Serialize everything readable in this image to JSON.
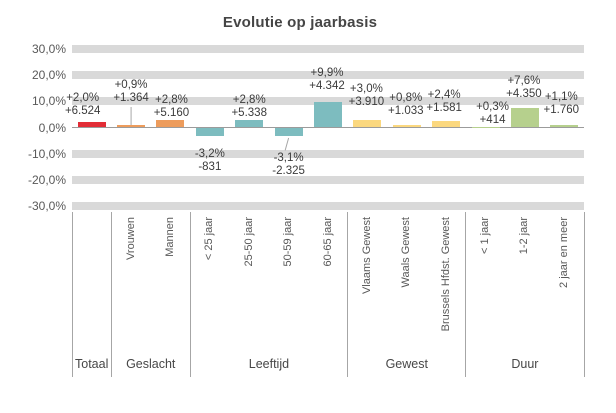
{
  "title": "Evolutie op jaarbasis",
  "colors": {
    "gridband": "#d9d9d9",
    "axis_line": "#9b9b9b",
    "separator": "#a6a6a6",
    "title_text": "#454545",
    "axis_text": "#595959",
    "label_text": "#3b3b3b"
  },
  "chart_data": {
    "type": "bar",
    "title": "Evolutie op jaarbasis",
    "xlabel": "",
    "ylabel": "",
    "ylim": [
      -30,
      30
    ],
    "grid": "horizontal-bands",
    "legend": "none",
    "yticks": [
      {
        "label": "30,0%",
        "value": 30
      },
      {
        "label": "20,0%",
        "value": 20
      },
      {
        "label": "10,0%",
        "value": 10
      },
      {
        "label": "0,0%",
        "value": 0
      },
      {
        "label": "-10,0%",
        "value": -10
      },
      {
        "label": "-20,0%",
        "value": -20
      },
      {
        "label": "-30,0%",
        "value": -30
      }
    ],
    "groups": [
      {
        "label": "Totaal",
        "color": "#e22d36",
        "bars": [
          {
            "category": "",
            "pct": 2.0,
            "pct_label": "+2,0%",
            "abs_label": "+6.524"
          }
        ]
      },
      {
        "label": "Geslacht",
        "color": "#ed9c5c",
        "bars": [
          {
            "category": "Vrouwen",
            "pct": 0.9,
            "pct_label": "+0,9%",
            "abs_label": "+1.364"
          },
          {
            "category": "Mannen",
            "pct": 2.8,
            "pct_label": "+2,8%",
            "abs_label": "+5.160"
          }
        ]
      },
      {
        "label": "Leeftijd",
        "color": "#7dbcbf",
        "bars": [
          {
            "category": "< 25 jaar",
            "pct": -3.2,
            "pct_label": "-3,2%",
            "abs_label": "-831"
          },
          {
            "category": "25-50 jaar",
            "pct": 2.8,
            "pct_label": "+2,8%",
            "abs_label": "+5.338"
          },
          {
            "category": "50-59 jaar",
            "pct": -3.1,
            "pct_label": "-3,1%",
            "abs_label": "-2.325"
          },
          {
            "category": "60-65 jaar",
            "pct": 9.9,
            "pct_label": "+9,9%",
            "abs_label": "+4.342"
          }
        ]
      },
      {
        "label": "Gewest",
        "color": "#fbd87f",
        "bars": [
          {
            "category": "Vlaams Gewest",
            "pct": 3.0,
            "pct_label": "+3,0%",
            "abs_label": "+3.910"
          },
          {
            "category": "Waals Gewest",
            "pct": 0.8,
            "pct_label": "+0,8%",
            "abs_label": "+1.033"
          },
          {
            "category": "Brussels Hfdst. Gewest",
            "pct": 2.4,
            "pct_label": "+2,4%",
            "abs_label": "+1.581"
          }
        ]
      },
      {
        "label": "Duur",
        "color": "#b6d08d",
        "bars": [
          {
            "category": "< 1 jaar",
            "pct": 0.3,
            "pct_label": "+0,3%",
            "abs_label": "+414"
          },
          {
            "category": "1-2 jaar",
            "pct": 7.6,
            "pct_label": "+7,6%",
            "abs_label": "+4.350"
          },
          {
            "category": "2 jaar en meer",
            "pct": 1.1,
            "pct_label": "+1,1%",
            "abs_label": "+1.760"
          }
        ]
      }
    ]
  }
}
